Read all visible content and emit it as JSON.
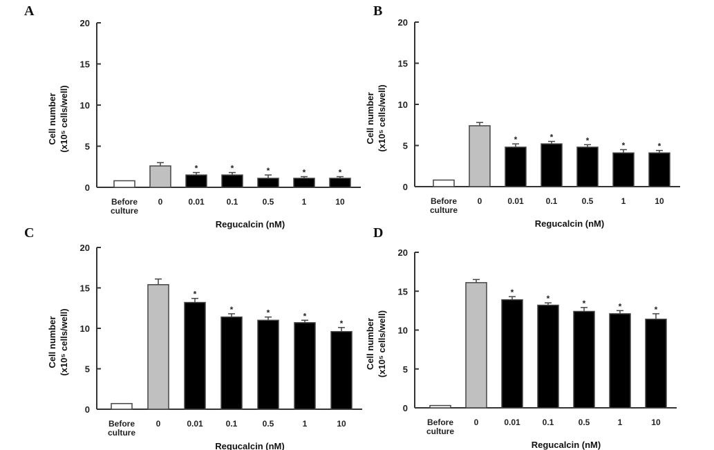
{
  "chart_data": [
    {
      "panel": "A",
      "type": "bar",
      "categories": [
        "Before culture",
        "0",
        "0.01",
        "0.1",
        "0.5",
        "1",
        "10"
      ],
      "values": [
        0.8,
        2.6,
        1.5,
        1.5,
        1.1,
        1.1,
        1.1
      ],
      "errors": [
        0,
        0.4,
        0.3,
        0.3,
        0.4,
        0.2,
        0.2
      ],
      "significant": [
        false,
        false,
        true,
        true,
        true,
        true,
        true
      ],
      "colors": [
        "#ffffff",
        "#c0c0c0",
        "#000000",
        "#000000",
        "#000000",
        "#000000",
        "#000000"
      ],
      "xlabel": "Regucalcin (nM)",
      "ylabel_line1": "Cell number",
      "ylabel_line2": "(x10⁵ cells/well)",
      "ylim": [
        0,
        20
      ],
      "yticks": [
        0,
        5,
        10,
        15,
        20
      ]
    },
    {
      "panel": "B",
      "type": "bar",
      "categories": [
        "Before culture",
        "0",
        "0.01",
        "0.1",
        "0.5",
        "1",
        "10"
      ],
      "values": [
        0.8,
        7.4,
        4.8,
        5.2,
        4.8,
        4.1,
        4.1
      ],
      "errors": [
        0,
        0.4,
        0.4,
        0.3,
        0.3,
        0.4,
        0.3
      ],
      "significant": [
        false,
        false,
        true,
        true,
        true,
        true,
        true
      ],
      "colors": [
        "#ffffff",
        "#c0c0c0",
        "#000000",
        "#000000",
        "#000000",
        "#000000",
        "#000000"
      ],
      "xlabel": "Regucalcin (nM)",
      "ylabel_line1": "Cell number",
      "ylabel_line2": "(x10⁵ cells/well)",
      "ylim": [
        0,
        20
      ],
      "yticks": [
        0,
        5,
        10,
        15,
        20
      ]
    },
    {
      "panel": "C",
      "type": "bar",
      "categories": [
        "Before culture",
        "0",
        "0.01",
        "0.1",
        "0.5",
        "1",
        "10"
      ],
      "values": [
        0.7,
        15.4,
        13.2,
        11.4,
        11.0,
        10.7,
        9.6
      ],
      "errors": [
        0,
        0.7,
        0.5,
        0.4,
        0.4,
        0.3,
        0.5
      ],
      "significant": [
        false,
        false,
        true,
        true,
        true,
        true,
        true
      ],
      "colors": [
        "#ffffff",
        "#c0c0c0",
        "#000000",
        "#000000",
        "#000000",
        "#000000",
        "#000000"
      ],
      "xlabel": "Regucalcin (nM)",
      "ylabel_line1": "Cell number",
      "ylabel_line2": "(x10⁵ cells/well)",
      "ylim": [
        0,
        20
      ],
      "yticks": [
        0,
        5,
        10,
        15,
        20
      ]
    },
    {
      "panel": "D",
      "type": "bar",
      "categories": [
        "Before culture",
        "0",
        "0.01",
        "0.1",
        "0.5",
        "1",
        "10"
      ],
      "values": [
        0.3,
        16.1,
        13.9,
        13.2,
        12.4,
        12.1,
        11.4
      ],
      "errors": [
        0,
        0.4,
        0.4,
        0.3,
        0.5,
        0.4,
        0.7
      ],
      "significant": [
        false,
        false,
        true,
        true,
        true,
        true,
        true
      ],
      "colors": [
        "#ffffff",
        "#c0c0c0",
        "#000000",
        "#000000",
        "#000000",
        "#000000",
        "#000000"
      ],
      "xlabel": "Regucalcin (nM)",
      "ylabel_line1": "Cell number",
      "ylabel_line2": "(x10⁵ cells/well)",
      "ylim": [
        0,
        20
      ],
      "yticks": [
        0,
        5,
        10,
        15,
        20
      ]
    }
  ],
  "significance_marker": "*"
}
